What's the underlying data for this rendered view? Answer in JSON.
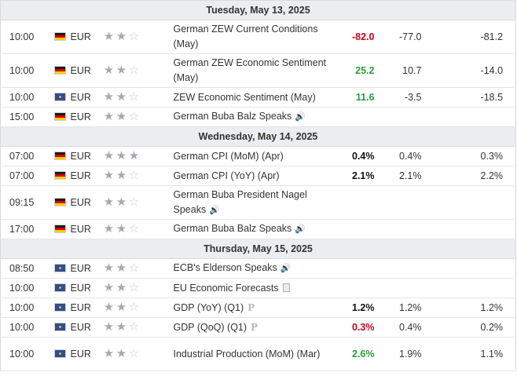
{
  "days": [
    {
      "label": "Tuesday, May 13, 2025",
      "events": [
        {
          "time": "10:00",
          "flag": "de",
          "currency": "EUR",
          "stars": 2,
          "event": "German ZEW Current Conditions (May)",
          "icon": "",
          "actual": "-82.0",
          "actual_tone": "neg",
          "forecast": "-77.0",
          "previous": "-81.2",
          "tall": true
        },
        {
          "time": "10:00",
          "flag": "de",
          "currency": "EUR",
          "stars": 2,
          "event": "German ZEW Economic Sentiment (May)",
          "icon": "",
          "actual": "25.2",
          "actual_tone": "pos",
          "forecast": "10.7",
          "previous": "-14.0",
          "tall": true
        },
        {
          "time": "10:00",
          "flag": "eu",
          "currency": "EUR",
          "stars": 2,
          "event": "ZEW Economic Sentiment (May)",
          "icon": "",
          "actual": "11.6",
          "actual_tone": "pos",
          "forecast": "-3.5",
          "previous": "-18.5",
          "tall": false
        },
        {
          "time": "15:00",
          "flag": "de",
          "currency": "EUR",
          "stars": 2,
          "event": "German Buba Balz Speaks",
          "icon": "speaker",
          "actual": "",
          "actual_tone": "neu",
          "forecast": "",
          "previous": "",
          "tall": false
        }
      ]
    },
    {
      "label": "Wednesday, May 14, 2025",
      "events": [
        {
          "time": "07:00",
          "flag": "de",
          "currency": "EUR",
          "stars": 3,
          "event": "German CPI (MoM) (Apr)",
          "icon": "",
          "actual": "0.4%",
          "actual_tone": "neu",
          "forecast": "0.4%",
          "previous": "0.3%",
          "tall": false
        },
        {
          "time": "07:00",
          "flag": "de",
          "currency": "EUR",
          "stars": 2,
          "event": "German CPI (YoY) (Apr)",
          "icon": "",
          "actual": "2.1%",
          "actual_tone": "neu",
          "forecast": "2.1%",
          "previous": "2.2%",
          "tall": false
        },
        {
          "time": "09:15",
          "flag": "de",
          "currency": "EUR",
          "stars": 2,
          "event": "German Buba President Nagel Speaks",
          "icon": "speaker",
          "actual": "",
          "actual_tone": "neu",
          "forecast": "",
          "previous": "",
          "tall": true
        },
        {
          "time": "17:00",
          "flag": "de",
          "currency": "EUR",
          "stars": 2,
          "event": "German Buba Balz Speaks",
          "icon": "speaker",
          "actual": "",
          "actual_tone": "neu",
          "forecast": "",
          "previous": "",
          "tall": false
        }
      ]
    },
    {
      "label": "Thursday, May 15, 2025",
      "events": [
        {
          "time": "08:50",
          "flag": "eu",
          "currency": "EUR",
          "stars": 2,
          "event": "ECB's Elderson Speaks",
          "icon": "speaker",
          "actual": "",
          "actual_tone": "neu",
          "forecast": "",
          "previous": "",
          "tall": false
        },
        {
          "time": "10:00",
          "flag": "eu",
          "currency": "EUR",
          "stars": 2,
          "event": "EU Economic Forecasts",
          "icon": "document",
          "actual": "",
          "actual_tone": "neu",
          "forecast": "",
          "previous": "",
          "tall": false
        },
        {
          "time": "10:00",
          "flag": "eu",
          "currency": "EUR",
          "stars": 2,
          "event": "GDP (YoY) (Q1)",
          "icon": "preliminary",
          "actual": "1.2%",
          "actual_tone": "neu",
          "forecast": "1.2%",
          "previous": "1.2%",
          "tall": false
        },
        {
          "time": "10:00",
          "flag": "eu",
          "currency": "EUR",
          "stars": 2,
          "event": "GDP (QoQ) (Q1)",
          "icon": "preliminary",
          "actual": "0.3%",
          "actual_tone": "neg",
          "forecast": "0.4%",
          "previous": "0.2%",
          "tall": false
        },
        {
          "time": "10:00",
          "flag": "eu",
          "currency": "EUR",
          "stars": 2,
          "event": "Industrial Production (MoM) (Mar)",
          "icon": "",
          "actual": "2.6%",
          "actual_tone": "pos",
          "forecast": "1.9%",
          "previous": "1.1%",
          "tall": true
        }
      ]
    }
  ],
  "icon_glyphs": {
    "speaker": "🔊",
    "preliminary": "P"
  },
  "colors": {
    "negative": "#d0021b",
    "positive": "#2a9d3a",
    "neutral": "#111111",
    "day_header_bg": "#ebedf0"
  }
}
